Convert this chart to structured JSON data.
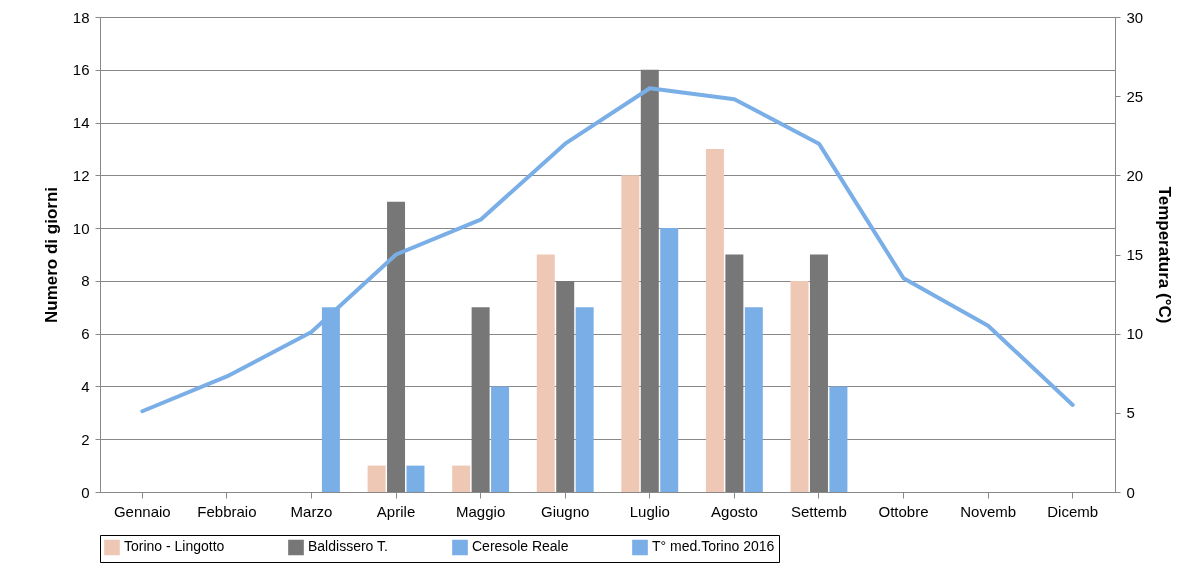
{
  "chart_data": {
    "type": "bar",
    "ylabel": "Numero di giorni",
    "y2label": "Temperatura  (°C)",
    "categories": [
      "Gennaio",
      "Febbraio",
      "Marzo",
      "Aprile",
      "Maggio",
      "Giugno",
      "Luglio",
      "Agosto",
      "Settemb",
      "Ottobre",
      "Novemb",
      "Dicemb"
    ],
    "series": [
      {
        "name": "Torino - Lingotto",
        "color": "#eec8b4",
        "values": [
          null,
          null,
          null,
          1,
          1,
          9,
          12,
          13,
          8,
          null,
          null,
          null
        ]
      },
      {
        "name": "Baldissero T.",
        "color": "#777777",
        "values": [
          null,
          null,
          null,
          11,
          7,
          8,
          16,
          9,
          9,
          null,
          null,
          null
        ]
      },
      {
        "name": "Ceresole Reale",
        "color": "#7aaee6",
        "values": [
          null,
          null,
          7,
          1,
          4,
          7,
          10,
          7,
          4,
          null,
          null,
          null
        ]
      },
      {
        "name": "T° med.Torino 2016",
        "type": "line",
        "axis": "y2",
        "color": "#7aaee6",
        "values": [
          5.1,
          7.3,
          10.1,
          15.0,
          17.2,
          22.0,
          25.5,
          24.8,
          22.0,
          13.5,
          10.5,
          5.5
        ]
      }
    ],
    "ylim": [
      0,
      18
    ],
    "yticks": [
      0,
      2,
      4,
      6,
      8,
      10,
      12,
      14,
      16,
      18
    ],
    "y2lim": [
      0,
      30
    ],
    "y2ticks": [
      0,
      5,
      10,
      15,
      20,
      25,
      30
    ],
    "grid": "y",
    "legend": "bottom"
  }
}
